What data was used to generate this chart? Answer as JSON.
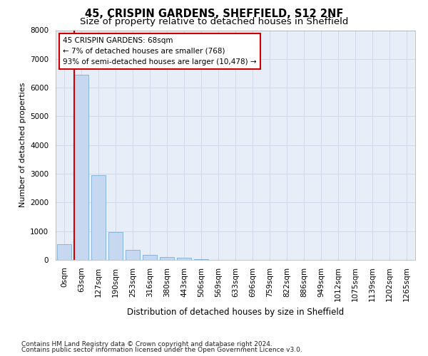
{
  "title": "45, CRISPIN GARDENS, SHEFFIELD, S12 2NF",
  "subtitle": "Size of property relative to detached houses in Sheffield",
  "xlabel": "Distribution of detached houses by size in Sheffield",
  "ylabel": "Number of detached properties",
  "bar_labels": [
    "0sqm",
    "63sqm",
    "127sqm",
    "190sqm",
    "253sqm",
    "316sqm",
    "380sqm",
    "443sqm",
    "506sqm",
    "569sqm",
    "633sqm",
    "696sqm",
    "759sqm",
    "822sqm",
    "886sqm",
    "949sqm",
    "1012sqm",
    "1075sqm",
    "1139sqm",
    "1202sqm",
    "1265sqm"
  ],
  "bar_values": [
    550,
    6450,
    2950,
    975,
    340,
    165,
    110,
    75,
    30,
    5,
    3,
    2,
    1,
    1,
    0,
    0,
    0,
    0,
    0,
    0,
    0
  ],
  "bar_color": "#c5d8f0",
  "bar_edge_color": "#7aaed6",
  "grid_color": "#d0d8e8",
  "bg_color": "#e8eef8",
  "vline_bin": 1,
  "vline_color": "#cc0000",
  "annotation_text": "45 CRISPIN GARDENS: 68sqm\n← 7% of detached houses are smaller (768)\n93% of semi-detached houses are larger (10,478) →",
  "annotation_box_edgecolor": "#cc0000",
  "ylim": [
    0,
    8000
  ],
  "yticks": [
    0,
    1000,
    2000,
    3000,
    4000,
    5000,
    6000,
    7000,
    8000
  ],
  "footnote1": "Contains HM Land Registry data © Crown copyright and database right 2024.",
  "footnote2": "Contains public sector information licensed under the Open Government Licence v3.0.",
  "title_fontsize": 10.5,
  "subtitle_fontsize": 9.5,
  "xlabel_fontsize": 8.5,
  "ylabel_fontsize": 8,
  "tick_fontsize": 7.5,
  "annot_fontsize": 7.5,
  "footnote_fontsize": 6.5
}
